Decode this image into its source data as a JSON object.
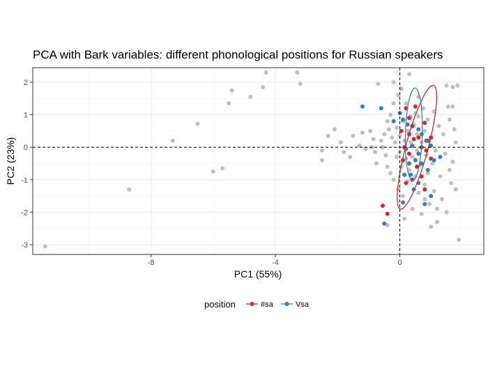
{
  "chart_data": {
    "type": "scatter",
    "title": "PCA with Bark variables: different phonological positions for Russian speakers",
    "xlabel": "PC1 (55%)",
    "ylabel": "PC2 (23%)",
    "xlim": [
      -11.8,
      2.7
    ],
    "ylim": [
      -3.3,
      2.45
    ],
    "xticks": [
      -8,
      -4,
      0
    ],
    "yticks": [
      -3,
      -2,
      -1,
      0,
      1,
      2
    ],
    "grid": true,
    "reference_lines": [
      {
        "axis": "x",
        "value": 0,
        "style": "dashed"
      },
      {
        "axis": "y",
        "value": 0,
        "style": "dashed"
      }
    ],
    "legend": {
      "title": "position",
      "placement": "bottom"
    },
    "series": [
      {
        "name": "#sa",
        "color": "#d7262b",
        "ellipse": {
          "center": [
            0.55,
            0.0
          ],
          "rx": 2.35,
          "ry": 0.7,
          "angle": 57
        },
        "points": [
          [
            0.2,
            1.2
          ],
          [
            0.5,
            1.25
          ],
          [
            0.3,
            0.9
          ],
          [
            0.8,
            0.75
          ],
          [
            0.4,
            0.65
          ],
          [
            0.05,
            0.5
          ],
          [
            0.3,
            0.4
          ],
          [
            0.6,
            0.3
          ],
          [
            0.45,
            0.25
          ],
          [
            0.15,
            0.0
          ],
          [
            0.9,
            0.2
          ],
          [
            1.0,
            0.3
          ],
          [
            0.7,
            0.0
          ],
          [
            0.85,
            -0.1
          ],
          [
            0.3,
            -0.2
          ],
          [
            0.1,
            -0.4
          ],
          [
            0.55,
            -0.6
          ],
          [
            0.7,
            -0.9
          ],
          [
            0.4,
            -1.0
          ],
          [
            0.2,
            -1.1
          ],
          [
            0.8,
            -1.3
          ],
          [
            -0.55,
            -1.8
          ],
          [
            -0.4,
            -2.05
          ],
          [
            1.0,
            -0.35
          ]
        ]
      },
      {
        "name": "Vsa",
        "color": "#3a7db6",
        "ellipse": {
          "center": [
            0.45,
            0.4
          ],
          "rx": 1.5,
          "ry": 0.6,
          "angle": 86
        },
        "points": [
          [
            -1.2,
            1.25
          ],
          [
            -0.6,
            1.2
          ],
          [
            0.0,
            1.05
          ],
          [
            0.1,
            0.85
          ],
          [
            -0.2,
            0.8
          ],
          [
            0.25,
            0.7
          ],
          [
            0.6,
            0.55
          ],
          [
            0.7,
            0.4
          ],
          [
            0.85,
            0.2
          ],
          [
            1.0,
            0.05
          ],
          [
            0.4,
            0.05
          ],
          [
            0.2,
            -0.05
          ],
          [
            0.6,
            -0.2
          ],
          [
            1.1,
            -0.4
          ],
          [
            0.5,
            -0.4
          ],
          [
            0.3,
            -0.5
          ],
          [
            0.7,
            -0.5
          ],
          [
            0.9,
            -0.7
          ],
          [
            0.35,
            -0.85
          ],
          [
            0.15,
            -0.85
          ],
          [
            0.6,
            -1.1
          ],
          [
            0.45,
            -1.3
          ],
          [
            1.3,
            -0.3
          ],
          [
            -0.5,
            -2.35
          ],
          [
            0.8,
            -1.75
          ],
          [
            0.1,
            -1.7
          ],
          [
            1.0,
            -1.5
          ]
        ]
      },
      {
        "name": "",
        "color": "#bfbfbf",
        "points": [
          [
            -11.4,
            -3.05
          ],
          [
            -8.7,
            -1.3
          ],
          [
            -7.3,
            0.2
          ],
          [
            -6.5,
            0.72
          ],
          [
            -6.0,
            -0.75
          ],
          [
            -5.7,
            -0.65
          ],
          [
            -5.5,
            1.35
          ],
          [
            -5.4,
            1.75
          ],
          [
            -4.8,
            1.55
          ],
          [
            -4.4,
            1.85
          ],
          [
            -4.3,
            2.3
          ],
          [
            -3.3,
            2.3
          ],
          [
            -3.2,
            1.95
          ],
          [
            -2.5,
            -0.4
          ],
          [
            -2.5,
            -0.1
          ],
          [
            -2.3,
            0.35
          ],
          [
            -2.1,
            0.55
          ],
          [
            -1.9,
            0.15
          ],
          [
            -1.8,
            -0.15
          ],
          [
            -1.6,
            -0.3
          ],
          [
            -1.5,
            0.35
          ],
          [
            -1.3,
            0.05
          ],
          [
            -1.2,
            0.45
          ],
          [
            -1.1,
            -0.05
          ],
          [
            -0.95,
            0.5
          ],
          [
            -0.9,
            0.0
          ],
          [
            -0.85,
            0.25
          ],
          [
            -0.8,
            -0.15
          ],
          [
            -0.75,
            -0.5
          ],
          [
            -0.6,
            0.2
          ],
          [
            -0.55,
            0.0
          ],
          [
            -0.5,
            0.4
          ],
          [
            -0.45,
            -0.25
          ],
          [
            -0.4,
            0.8
          ],
          [
            -0.4,
            -0.6
          ],
          [
            -0.35,
            0.55
          ],
          [
            -0.3,
            1.0
          ],
          [
            -0.3,
            -0.8
          ],
          [
            -0.25,
            0.3
          ],
          [
            -0.2,
            -1.0
          ],
          [
            -0.2,
            1.35
          ],
          [
            -0.15,
            0.15
          ],
          [
            -0.1,
            0.6
          ],
          [
            -0.1,
            -0.3
          ],
          [
            -0.05,
            -1.3
          ],
          [
            -0.05,
            1.6
          ],
          [
            0.0,
            0.35
          ],
          [
            0.0,
            -0.15
          ],
          [
            0.05,
            -0.6
          ],
          [
            0.05,
            1.8
          ],
          [
            0.1,
            0.8
          ],
          [
            0.1,
            -1.5
          ],
          [
            0.15,
            0.2
          ],
          [
            0.2,
            -0.35
          ],
          [
            0.2,
            1.35
          ],
          [
            0.25,
            0.5
          ],
          [
            0.25,
            -1.05
          ],
          [
            0.3,
            -0.7
          ],
          [
            0.35,
            0.15
          ],
          [
            0.35,
            0.95
          ],
          [
            0.4,
            -1.9
          ],
          [
            0.4,
            -0.3
          ],
          [
            0.45,
            0.7
          ],
          [
            0.5,
            -0.9
          ],
          [
            0.5,
            1.05
          ],
          [
            0.55,
            0.4
          ],
          [
            0.55,
            -0.1
          ],
          [
            0.6,
            -1.4
          ],
          [
            0.6,
            0.95
          ],
          [
            0.65,
            -0.55
          ],
          [
            0.7,
            0.15
          ],
          [
            0.7,
            -2.05
          ],
          [
            0.75,
            1.2
          ],
          [
            0.8,
            0.5
          ],
          [
            0.8,
            -1.15
          ],
          [
            0.85,
            -0.25
          ],
          [
            0.9,
            0.85
          ],
          [
            0.9,
            -0.8
          ],
          [
            0.95,
            -1.75
          ],
          [
            1.0,
            0.3
          ],
          [
            1.0,
            -2.45
          ],
          [
            1.05,
            -0.5
          ],
          [
            1.1,
            1.1
          ],
          [
            1.1,
            -1.35
          ],
          [
            1.15,
            -0.1
          ],
          [
            1.2,
            -2.3
          ],
          [
            1.25,
            0.65
          ],
          [
            1.3,
            -0.9
          ],
          [
            1.35,
            -1.6
          ],
          [
            1.4,
            0.4
          ],
          [
            1.45,
            -0.2
          ],
          [
            1.5,
            -2.0
          ],
          [
            1.55,
            1.25
          ],
          [
            1.6,
            0.85
          ],
          [
            1.65,
            -1.1
          ],
          [
            1.7,
            -0.45
          ],
          [
            1.7,
            1.85
          ],
          [
            1.75,
            0.55
          ],
          [
            1.8,
            -1.3
          ],
          [
            1.8,
            0.15
          ],
          [
            1.85,
            1.9
          ],
          [
            1.9,
            -2.85
          ],
          [
            1.5,
            1.9
          ],
          [
            -0.7,
            1.95
          ],
          [
            -0.4,
            -2.4
          ],
          [
            0.15,
            -2.2
          ],
          [
            -0.2,
            2.0
          ],
          [
            0.3,
            2.25
          ],
          [
            0.6,
            1.55
          ],
          [
            0.8,
            -1.6
          ],
          [
            1.2,
            -1.9
          ],
          [
            1.6,
            -0.7
          ],
          [
            1.7,
            1.25
          ]
        ]
      }
    ]
  }
}
